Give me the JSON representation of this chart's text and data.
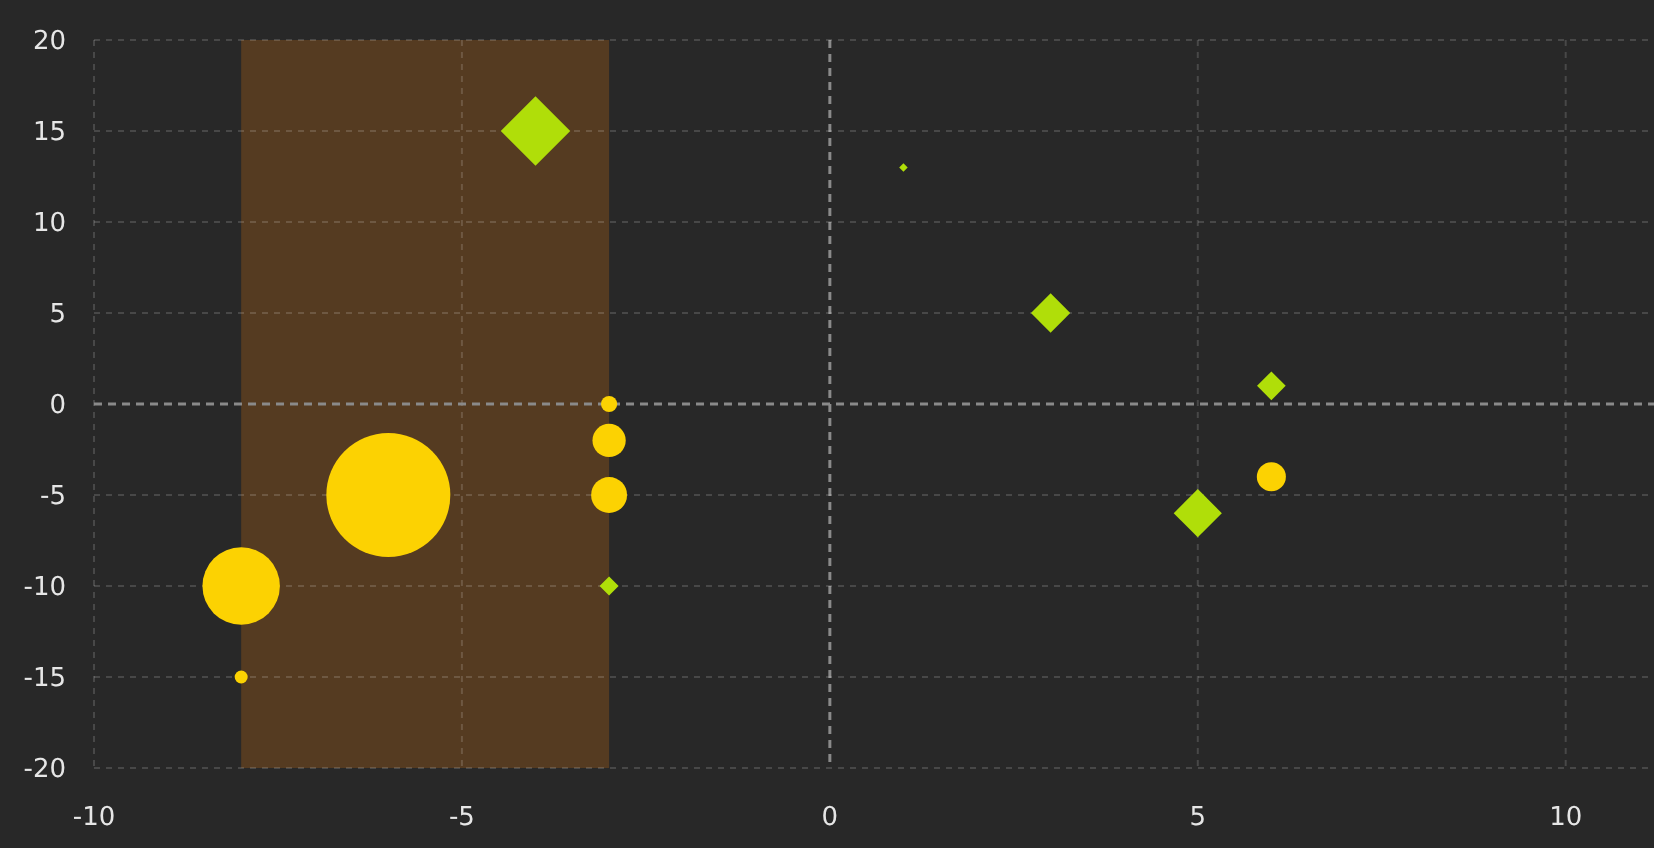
{
  "chart_data": {
    "type": "bubble",
    "xlim": [
      -10,
      11.2
    ],
    "xticks": [
      -10,
      -5,
      0,
      5,
      10
    ],
    "ylim": [
      -20,
      20
    ],
    "yticks": [
      -20,
      -15,
      -10,
      -5,
      0,
      5,
      10,
      15,
      20
    ],
    "grid": true,
    "bands": [
      {
        "axis": "x",
        "from": -8,
        "to": -3,
        "color": "#553b21"
      }
    ],
    "series": [
      {
        "color": "#fcd202",
        "marker": "circle",
        "x": [
          -8,
          -6,
          -3,
          -3,
          -3,
          -8,
          6
        ],
        "values": [
          -10,
          -5,
          0,
          -2,
          -5,
          -15,
          -4
        ],
        "sizes": [
          0.39,
          1,
          0.017,
          0.072,
          0.084,
          0.011,
          0.055
        ]
      },
      {
        "color": "#b0de09",
        "marker": "diamond",
        "x": [
          -4,
          -3,
          1,
          3,
          6,
          5
        ],
        "values": [
          15,
          -10,
          13,
          5,
          1,
          -6
        ],
        "sizes": [
          0.2,
          0.015,
          0.003,
          0.064,
          0.034,
          0.096
        ]
      }
    ]
  }
}
